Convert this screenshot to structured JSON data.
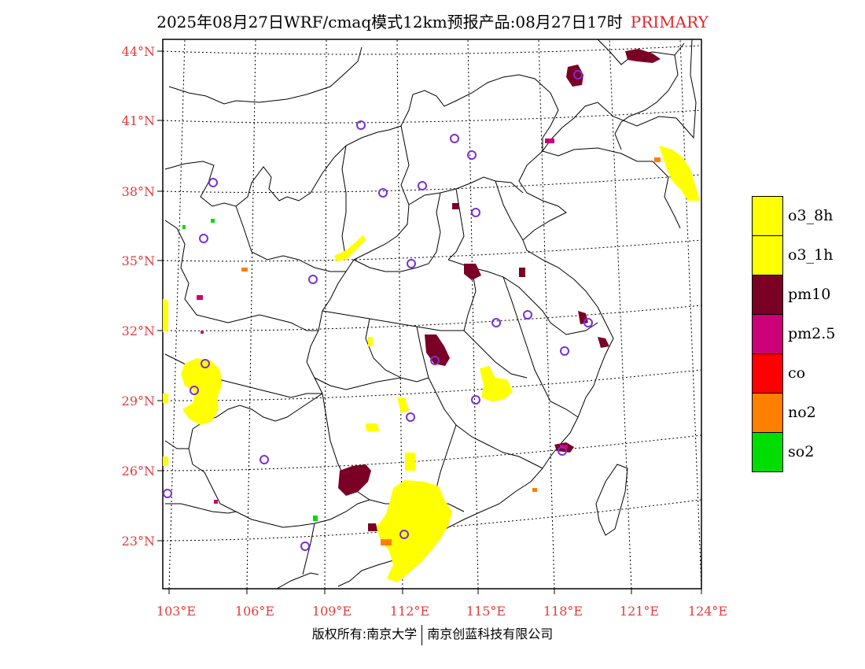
{
  "title": {
    "text": "2025年08月27日WRF/cmaq模式12km预报产品:08月27日17时",
    "product": "PRIMARY"
  },
  "lat_labels": [
    "44°N",
    "41°N",
    "38°N",
    "35°N",
    "32°N",
    "29°N",
    "26°N",
    "23°N"
  ],
  "lon_labels": [
    "103°E",
    "106°E",
    "109°E",
    "112°E",
    "115°E",
    "118°E",
    "121°E",
    "124°E"
  ],
  "legend": [
    {
      "label": "o3_8h",
      "color": "#ffff00"
    },
    {
      "label": "o3_1h",
      "color": "#ffff00"
    },
    {
      "label": "pm10",
      "color": "#7a0026"
    },
    {
      "label": "pm2.5",
      "color": "#cc0077"
    },
    {
      "label": "co",
      "color": "#ff0000"
    },
    {
      "label": "no2",
      "color": "#ff7f00"
    },
    {
      "label": "so2",
      "color": "#00dd00"
    }
  ],
  "copyright": {
    "left": "版权所有:南京大学",
    "right": "南京创蓝科技有限公司"
  },
  "colors": {
    "label_red": "#e53b3b",
    "station_marker": "#7b2fd6"
  }
}
